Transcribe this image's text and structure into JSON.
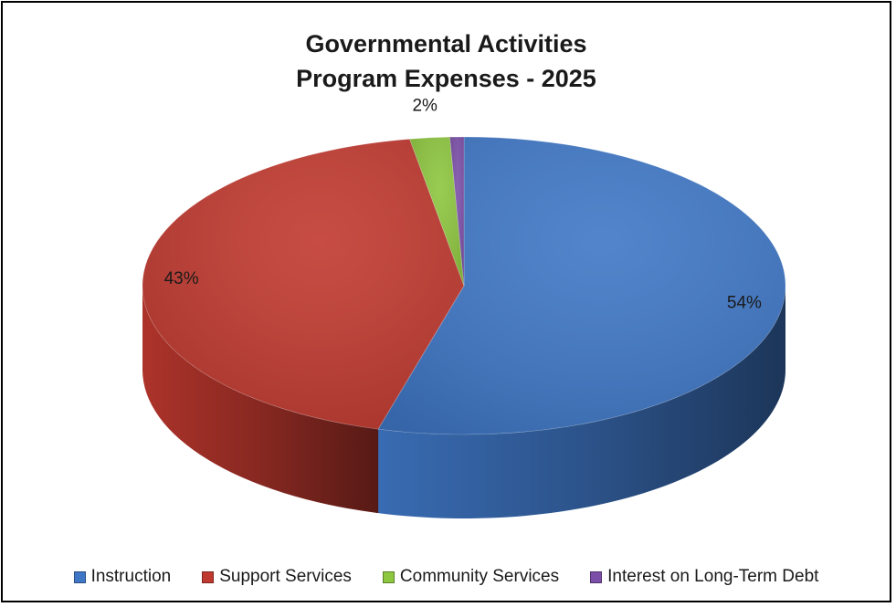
{
  "chart_data": {
    "type": "pie",
    "title": "Governmental Activities",
    "subtitle": "Program Expenses - 2025",
    "categories": [
      "Instruction",
      "Support Services",
      "Community Services",
      "Interest on Long-Term Debt"
    ],
    "values": [
      54.3,
      43.0,
      2.0,
      0.7
    ],
    "data_labels": [
      "54%",
      "43%",
      "2%",
      ""
    ],
    "colors": [
      "#3f77c6",
      "#c0392f",
      "#8dc63f",
      "#7b4fa8"
    ],
    "legend_position": "bottom",
    "style": "3d"
  }
}
